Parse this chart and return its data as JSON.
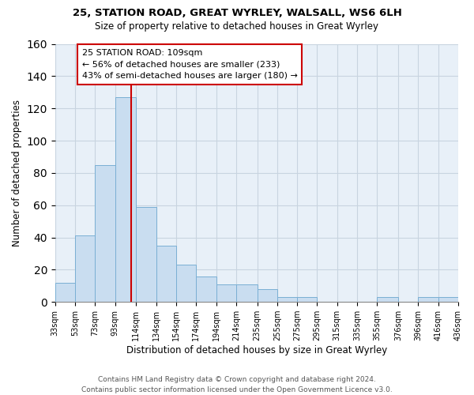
{
  "title1": "25, STATION ROAD, GREAT WYRLEY, WALSALL, WS6 6LH",
  "title2": "Size of property relative to detached houses in Great Wyrley",
  "xlabel": "Distribution of detached houses by size in Great Wyrley",
  "ylabel": "Number of detached properties",
  "bin_edges": [
    33,
    53,
    73,
    93,
    114,
    134,
    154,
    174,
    194,
    214,
    235,
    255,
    275,
    295,
    315,
    335,
    355,
    376,
    396,
    416,
    436
  ],
  "bar_heights": [
    12,
    41,
    85,
    127,
    59,
    35,
    23,
    16,
    11,
    11,
    8,
    3,
    3,
    0,
    0,
    0,
    3,
    0,
    3,
    3
  ],
  "bar_color": "#c9ddf0",
  "bar_edge_color": "#7aafd4",
  "property_size": 109,
  "red_line_color": "#cc0000",
  "annotation_line1": "25 STATION ROAD: 109sqm",
  "annotation_line2": "← 56% of detached houses are smaller (233)",
  "annotation_line3": "43% of semi-detached houses are larger (180) →",
  "annotation_box_color": "#ffffff",
  "annotation_border_color": "#cc0000",
  "ylim": [
    0,
    160
  ],
  "yticks": [
    0,
    20,
    40,
    60,
    80,
    100,
    120,
    140,
    160
  ],
  "footer_text": "Contains HM Land Registry data © Crown copyright and database right 2024.\nContains public sector information licensed under the Open Government Licence v3.0.",
  "grid_color": "#c8d4e0",
  "bg_color": "#e8f0f8",
  "fig_bg_color": "#ffffff"
}
